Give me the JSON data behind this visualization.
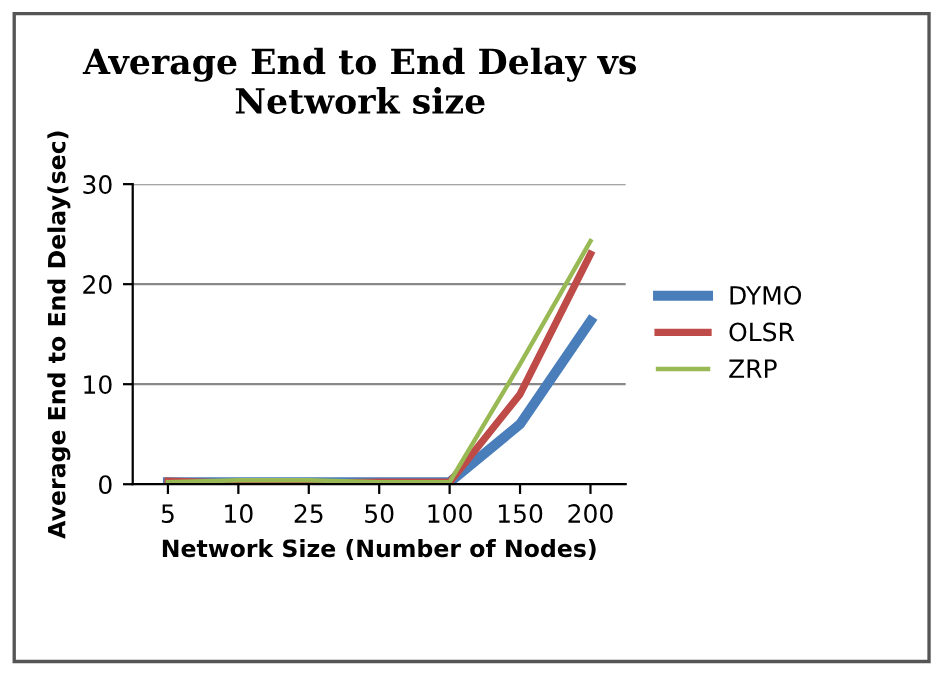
{
  "chart_data": {
    "type": "line",
    "title": "Average End to End Delay vs Network size",
    "xlabel": "Network Size (Number of Nodes)",
    "ylabel": "Average End to End Delay(sec)",
    "categories": [
      "5",
      "10",
      "25",
      "50",
      "100",
      "150",
      "200"
    ],
    "series": [
      {
        "name": "DYMO",
        "color": "#4a7ebb",
        "values": [
          0.2,
          0.2,
          0.2,
          0.2,
          0.2,
          6,
          16.3
        ]
      },
      {
        "name": "OLSR",
        "color": "#be4b48",
        "values": [
          0.3,
          0.1,
          0.1,
          0.2,
          0.2,
          9,
          23
        ]
      },
      {
        "name": "ZRP",
        "color": "#98b954",
        "values": [
          0.2,
          0.4,
          0.4,
          0.2,
          0.2,
          12,
          24.3
        ]
      }
    ],
    "ylim": [
      0,
      30
    ],
    "yticks": [
      0,
      10,
      20,
      30
    ],
    "grid": "y",
    "legend": "right"
  }
}
